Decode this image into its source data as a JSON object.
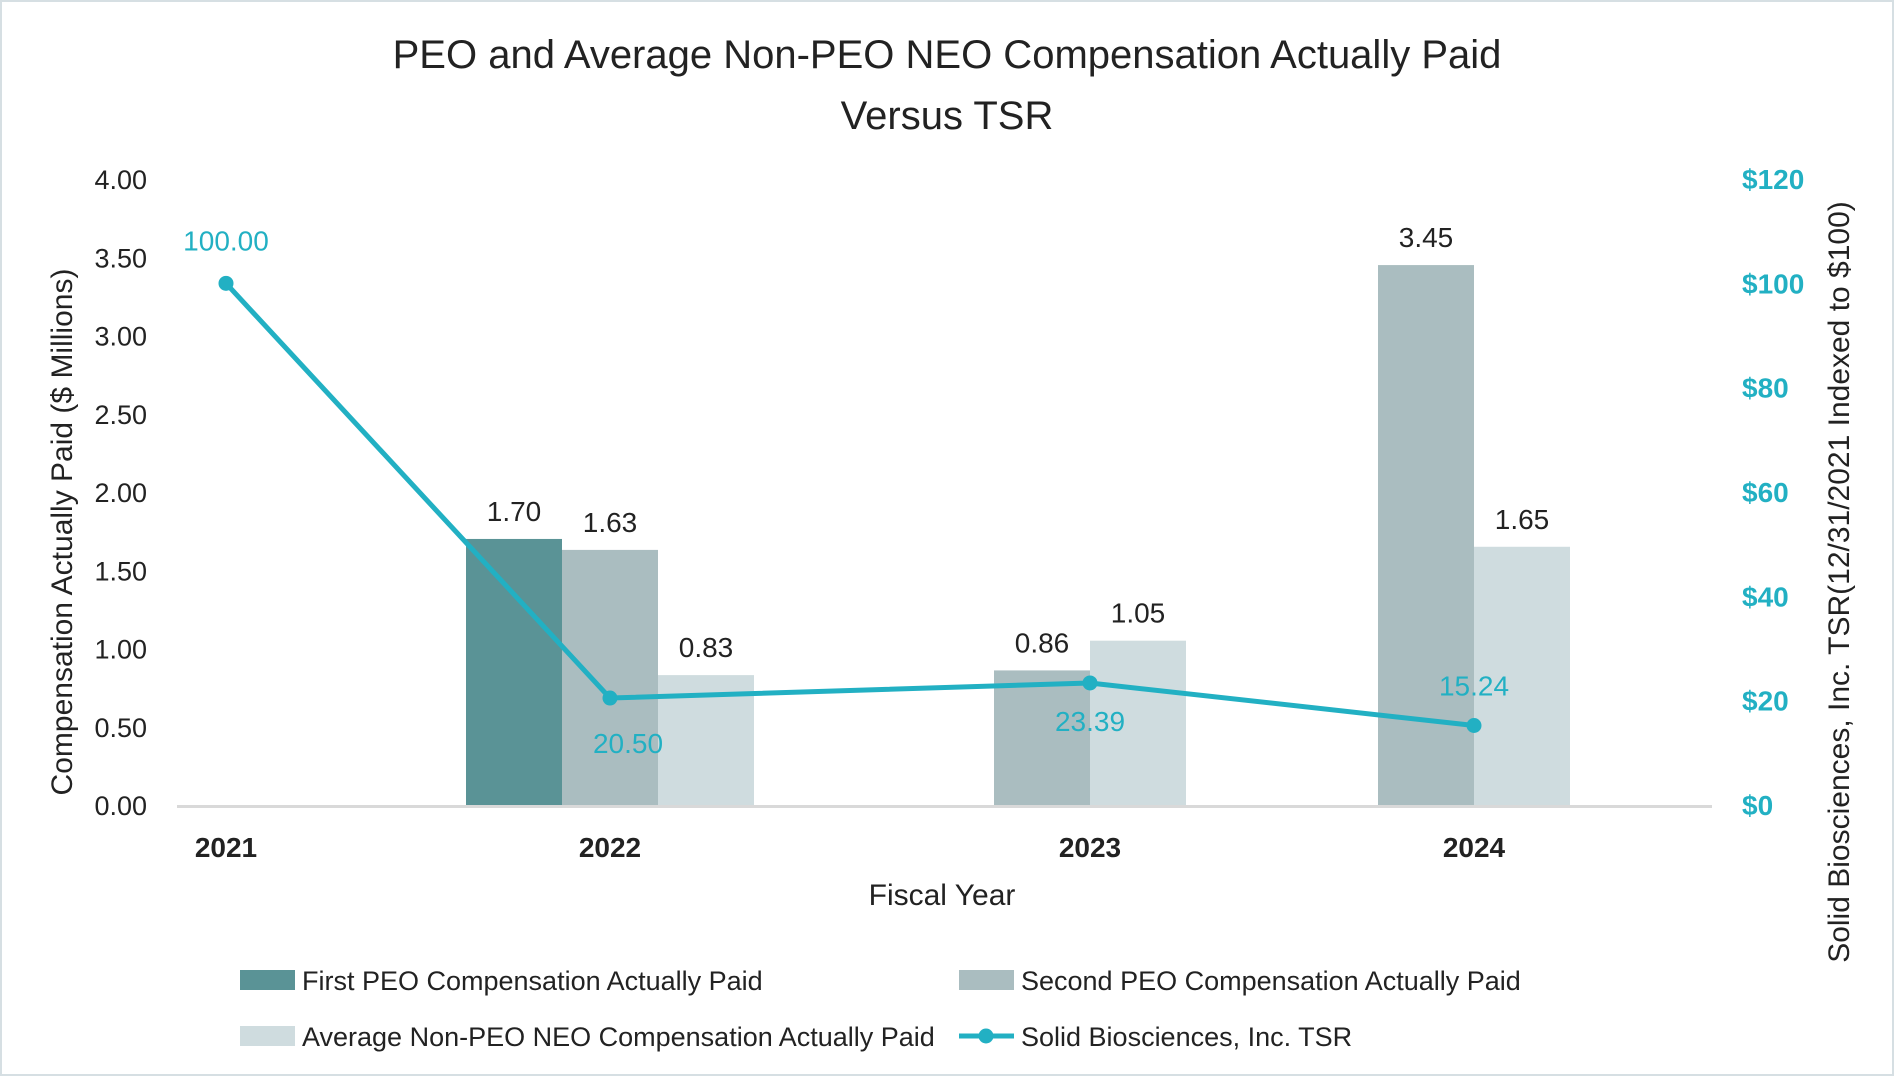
{
  "chart_data": {
    "type": "bar",
    "title_line1": "PEO and Average Non-PEO NEO Compensation Actually Paid",
    "title_line2": "Versus TSR",
    "xlabel": "Fiscal Year",
    "ylabel": "Compensation Actually Paid ($ Millions)",
    "y2label": "Solid Biosciences, Inc. TSR(12/31/2021 Indexed to $100)",
    "categories": [
      "2021",
      "2022",
      "2023",
      "2024"
    ],
    "ylim": [
      0,
      4
    ],
    "y_ticks": [
      "0.00",
      "0.50",
      "1.00",
      "1.50",
      "2.00",
      "2.50",
      "3.00",
      "3.50",
      "4.00"
    ],
    "y2lim": [
      0,
      120
    ],
    "y2_ticks": [
      "$0",
      "$20",
      "$40",
      "$60",
      "$80",
      "$100",
      "$120"
    ],
    "series": [
      {
        "name": "First PEO Compensation Actually Paid",
        "color": "#5a9396",
        "values": [
          null,
          1.7,
          null,
          null
        ],
        "labels": [
          "",
          "1.70",
          "",
          ""
        ]
      },
      {
        "name": "Second PEO Compensation Actually Paid",
        "color": "#aabdc0",
        "values": [
          null,
          1.63,
          0.86,
          3.45
        ],
        "labels": [
          "",
          "1.63",
          "0.86",
          "3.45"
        ]
      },
      {
        "name": "Average Non-PEO NEO Compensation Actually Paid",
        "color": "#cfdcdf",
        "values": [
          null,
          0.83,
          1.05,
          1.65
        ],
        "labels": [
          "",
          "0.83",
          "1.05",
          "1.65"
        ]
      }
    ],
    "line_series": {
      "name": "Solid Biosciences, Inc. TSR",
      "color": "#22b0c3",
      "values": [
        100.0,
        20.5,
        23.39,
        15.24
      ],
      "labels": [
        "100.00",
        "20.50",
        "23.39",
        "15.24"
      ]
    }
  }
}
